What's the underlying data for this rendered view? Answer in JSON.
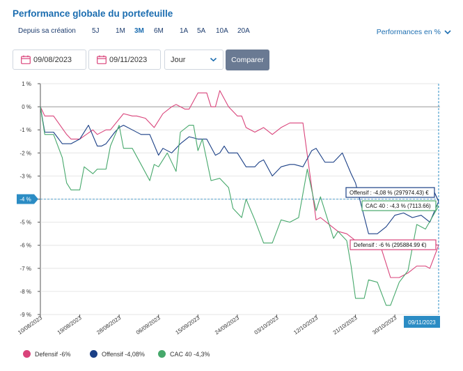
{
  "header": {
    "title": "Performance globale du portefeuille",
    "periods": [
      "Depuis sa création",
      "5J",
      "1M",
      "3M",
      "6M",
      "1A",
      "5A",
      "10A",
      "20A"
    ],
    "active_period": "3M",
    "perf_mode": "Performances en %"
  },
  "filters": {
    "date_from": "09/08/2023",
    "date_to": "09/11/2023",
    "granularity": "Jour",
    "compare_label": "Comparer"
  },
  "colors": {
    "defensif": "#d9437a",
    "offensif": "#1a3f86",
    "cac40": "#46a86b",
    "accent": "#2b8cc4"
  },
  "cursor": {
    "y_label": "-4 %",
    "x_label": "09/11/2023"
  },
  "tooltips": [
    {
      "series": "offensif",
      "text": "Offensif : -4,08 % (297974.43) €"
    },
    {
      "series": "cac40",
      "text": "CAC 40 : -4,3 % (7113.66)"
    },
    {
      "series": "defensif",
      "text": "Defensif : -6 % (295884.99 €)"
    }
  ],
  "legend": [
    {
      "series": "defensif",
      "label": "Defensif",
      "value": "-6%"
    },
    {
      "series": "offensif",
      "label": "Offensif",
      "value": "-4,08%"
    },
    {
      "series": "cac40",
      "label": "CAC 40",
      "value": "-4,3%"
    }
  ],
  "chart_data": {
    "type": "line",
    "x_start": "10/08/2023",
    "x_end": "09/11/2023",
    "x_ticks": [
      "10/08/2023",
      "19/08/2023",
      "28/08/2023",
      "06/09/2023",
      "15/09/2023",
      "24/09/2023",
      "03/10/2023",
      "12/10/2023",
      "21/10/2023",
      "30/10/2023"
    ],
    "y_ticks": [
      "1 %",
      "0 %",
      "-1 %",
      "-2 %",
      "-3 %",
      "-4 %",
      "-5 %",
      "-6 %",
      "-7 %",
      "-8 %",
      "-9 %"
    ],
    "ylim": [
      -9,
      1
    ],
    "grid": "horizontal",
    "series": [
      {
        "name": "Defensif",
        "key": "defensif",
        "x": [
          "10/08/2023",
          "11/08/2023",
          "13/08/2023",
          "16/08/2023",
          "17/08/2023",
          "19/08/2023",
          "22/08/2023",
          "23/08/2023",
          "25/08/2023",
          "26/08/2023",
          "29/08/2023",
          "31/08/2023",
          "01/09/2023",
          "03/09/2023",
          "05/09/2023",
          "07/09/2023",
          "09/09/2023",
          "10/09/2023",
          "12/09/2023",
          "13/09/2023",
          "15/09/2023",
          "17/09/2023",
          "18/09/2023",
          "19/09/2023",
          "20/09/2023",
          "22/09/2023",
          "24/09/2023",
          "25/09/2023",
          "26/09/2023",
          "28/09/2023",
          "30/09/2023",
          "02/10/2023",
          "04/10/2023",
          "06/10/2023",
          "08/10/2023",
          "09/10/2023",
          "10/10/2023",
          "12/10/2023",
          "13/10/2023",
          "15/10/2023",
          "17/10/2023",
          "19/10/2023",
          "21/10/2023",
          "23/10/2023",
          "25/10/2023",
          "27/10/2023",
          "29/10/2023",
          "31/10/2023",
          "02/11/2023",
          "04/11/2023",
          "06/11/2023",
          "07/11/2023",
          "09/11/2023"
        ],
        "values": [
          0,
          -0.4,
          -0.4,
          -1.2,
          -1.4,
          -1.4,
          -1.0,
          -1.2,
          -1.0,
          -1.0,
          -0.3,
          -0.4,
          -0.4,
          -0.5,
          -0.9,
          -0.3,
          0.0,
          0.1,
          -0.1,
          -0.1,
          0.6,
          0.6,
          0.0,
          0.0,
          0.7,
          0.0,
          -0.4,
          -0.4,
          -0.9,
          -1.1,
          -0.9,
          -1.2,
          -0.9,
          -0.7,
          -0.7,
          -0.7,
          -2.1,
          -4.9,
          -4.8,
          -5.1,
          -5.4,
          -5.5,
          -5.8,
          -6.0,
          -6.0,
          -6.2,
          -7.4,
          -7.4,
          -7.2,
          -6.9,
          -6.9,
          -7.0,
          -6.0
        ]
      },
      {
        "name": "Offensif",
        "key": "offensif",
        "x": [
          "10/08/2023",
          "11/08/2023",
          "13/08/2023",
          "15/08/2023",
          "17/08/2023",
          "19/08/2023",
          "21/08/2023",
          "23/08/2023",
          "24/08/2023",
          "25/08/2023",
          "27/08/2023",
          "28/08/2023",
          "29/08/2023",
          "31/08/2023",
          "02/09/2023",
          "04/09/2023",
          "06/09/2023",
          "07/09/2023",
          "09/09/2023",
          "11/09/2023",
          "13/09/2023",
          "15/09/2023",
          "17/09/2023",
          "19/09/2023",
          "20/09/2023",
          "21/09/2023",
          "22/09/2023",
          "24/09/2023",
          "26/09/2023",
          "28/09/2023",
          "29/09/2023",
          "30/09/2023",
          "02/10/2023",
          "04/10/2023",
          "06/10/2023",
          "07/10/2023",
          "09/10/2023",
          "11/10/2023",
          "12/10/2023",
          "14/10/2023",
          "16/10/2023",
          "18/10/2023",
          "20/10/2023",
          "21/10/2023",
          "24/10/2023",
          "26/10/2023",
          "28/10/2023",
          "30/10/2023",
          "01/11/2023",
          "03/11/2023",
          "05/11/2023",
          "07/11/2023",
          "09/11/2023"
        ],
        "values": [
          0,
          -1.1,
          -1.1,
          -1.6,
          -1.6,
          -1.4,
          -0.8,
          -1.7,
          -1.7,
          -1.6,
          -1.1,
          -0.9,
          -0.8,
          -1.0,
          -1.2,
          -1.2,
          -2.1,
          -1.8,
          -2.0,
          -1.6,
          -1.3,
          -1.4,
          -1.4,
          -2.1,
          -2.0,
          -1.7,
          -2.0,
          -2.0,
          -2.6,
          -2.6,
          -2.4,
          -2.3,
          -3.0,
          -2.6,
          -2.5,
          -2.5,
          -2.6,
          -1.9,
          -1.8,
          -2.4,
          -2.4,
          -2.0,
          -2.9,
          -3.3,
          -5.5,
          -5.5,
          -5.2,
          -4.7,
          -4.6,
          -4.8,
          -4.7,
          -5.0,
          -4.1
        ]
      },
      {
        "name": "CAC 40",
        "key": "cac40",
        "x": [
          "10/08/2023",
          "11/08/2023",
          "13/08/2023",
          "15/08/2023",
          "16/08/2023",
          "17/08/2023",
          "19/08/2023",
          "20/08/2023",
          "22/08/2023",
          "23/08/2023",
          "25/08/2023",
          "26/08/2023",
          "28/08/2023",
          "29/08/2023",
          "31/08/2023",
          "02/09/2023",
          "04/09/2023",
          "05/09/2023",
          "06/09/2023",
          "08/09/2023",
          "10/09/2023",
          "11/09/2023",
          "13/09/2023",
          "14/09/2023",
          "15/09/2023",
          "16/09/2023",
          "18/09/2023",
          "20/09/2023",
          "22/09/2023",
          "23/09/2023",
          "25/09/2023",
          "26/09/2023",
          "28/09/2023",
          "30/09/2023",
          "02/10/2023",
          "04/10/2023",
          "06/10/2023",
          "08/10/2023",
          "10/10/2023",
          "12/10/2023",
          "13/10/2023",
          "16/10/2023",
          "17/10/2023",
          "19/10/2023",
          "20/10/2023",
          "21/10/2023",
          "23/10/2023",
          "24/10/2023",
          "26/10/2023",
          "28/10/2023",
          "29/10/2023",
          "31/10/2023",
          "02/11/2023",
          "04/11/2023",
          "06/11/2023",
          "09/11/2023"
        ],
        "values": [
          0,
          -1.2,
          -1.2,
          -2.2,
          -3.3,
          -3.6,
          -3.6,
          -2.6,
          -2.9,
          -2.7,
          -2.7,
          -1.7,
          -0.8,
          -1.8,
          -1.8,
          -2.5,
          -3.2,
          -2.5,
          -2.6,
          -2.0,
          -2.8,
          -1.1,
          -0.8,
          -0.8,
          -1.9,
          -1.4,
          -3.2,
          -3.1,
          -3.5,
          -4.4,
          -4.8,
          -4.0,
          -4.9,
          -5.9,
          -5.9,
          -4.9,
          -5.0,
          -4.8,
          -2.7,
          -4.5,
          -3.9,
          -5.7,
          -5.4,
          -5.8,
          -6.9,
          -8.3,
          -8.3,
          -7.5,
          -7.6,
          -8.6,
          -8.6,
          -7.6,
          -7.1,
          -5.1,
          -5.3,
          -4.3
        ]
      }
    ]
  }
}
